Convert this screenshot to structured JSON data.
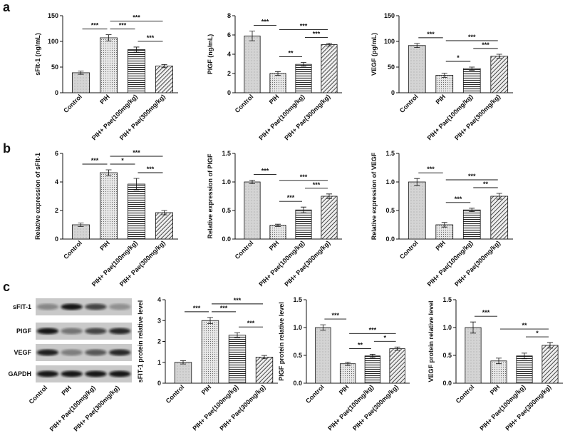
{
  "panel_labels": [
    "a",
    "b",
    "c"
  ],
  "blot": {
    "rows": [
      "sFIT-1",
      "PIGF",
      "VEGF",
      "GAPDH"
    ],
    "categories": [
      "Control",
      "PIH",
      "PIH+ Pae(100mg/kg)",
      "PIH+ Pae(300mg/kg)"
    ]
  },
  "chart_data": [
    {
      "type": "bar",
      "y_label": "sFlt-1 (ng/mL)",
      "categories": [
        "Control",
        "PIH",
        "PIH+ Pae(100mg/kg)",
        "PIH+ Pae(300mg/kg)"
      ],
      "values": [
        39,
        107,
        84,
        52
      ],
      "errors": [
        3,
        6,
        5,
        3
      ],
      "ylim": [
        0,
        150
      ],
      "yticks": [
        0,
        50,
        100,
        150
      ],
      "annotations": [
        {
          "text": "***",
          "between": [
            "Control",
            "PIH"
          ]
        },
        {
          "text": "***",
          "between": [
            "PIH",
            "PIH+ Pae(100mg/kg)"
          ]
        },
        {
          "text": "***",
          "between": [
            "PIH+ Pae(100mg/kg)",
            "PIH+ Pae(300mg/kg)"
          ]
        },
        {
          "text": "***",
          "between": [
            "PIH",
            "PIH+ Pae(300mg/kg)"
          ]
        }
      ]
    },
    {
      "type": "bar",
      "y_label": "PIGF (ng/mL)",
      "categories": [
        "Control",
        "PIH",
        "PIH+ Pae(100mg/kg)",
        "PIH+ Pae(300mg/kg)"
      ],
      "values": [
        5.9,
        2.0,
        2.95,
        5.0
      ],
      "errors": [
        0.5,
        0.2,
        0.2,
        0.15
      ],
      "ylim": [
        0,
        8
      ],
      "yticks": [
        0,
        2,
        4,
        6,
        8
      ],
      "annotations": [
        {
          "text": "***",
          "between": [
            "Control",
            "PIH"
          ]
        },
        {
          "text": "**",
          "between": [
            "PIH",
            "PIH+ Pae(100mg/kg)"
          ]
        },
        {
          "text": "***",
          "between": [
            "PIH+ Pae(100mg/kg)",
            "PIH+ Pae(300mg/kg)"
          ]
        },
        {
          "text": "***",
          "between": [
            "PIH",
            "PIH+ Pae(300mg/kg)"
          ]
        }
      ]
    },
    {
      "type": "bar",
      "y_label": "VEGF (pg/mL)",
      "categories": [
        "Control",
        "PIH",
        "PIH+ Pae(100mg/kg)",
        "PIH+ Pae(300mg/kg)"
      ],
      "values": [
        92,
        34,
        47,
        71
      ],
      "errors": [
        4,
        4,
        3,
        4
      ],
      "ylim": [
        0,
        150
      ],
      "yticks": [
        0,
        50,
        100,
        150
      ],
      "annotations": [
        {
          "text": "***",
          "between": [
            "Control",
            "PIH"
          ]
        },
        {
          "text": "*",
          "between": [
            "PIH",
            "PIH+ Pae(100mg/kg)"
          ]
        },
        {
          "text": "***",
          "between": [
            "PIH+ Pae(100mg/kg)",
            "PIH+ Pae(300mg/kg)"
          ]
        },
        {
          "text": "***",
          "between": [
            "PIH",
            "PIH+ Pae(300mg/kg)"
          ]
        }
      ]
    },
    {
      "type": "bar",
      "y_label": "Relative expression of sFlt-1",
      "categories": [
        "Control",
        "PIH",
        "PIH+ Pae(100mg/kg)",
        "PIH+ Pae(300mg/kg)"
      ],
      "values": [
        1.0,
        4.65,
        3.85,
        1.85
      ],
      "errors": [
        0.12,
        0.2,
        0.4,
        0.15
      ],
      "ylim": [
        0,
        6
      ],
      "yticks": [
        0,
        2,
        4,
        6
      ],
      "annotations": [
        {
          "text": "***",
          "between": [
            "Control",
            "PIH"
          ]
        },
        {
          "text": "*",
          "between": [
            "PIH",
            "PIH+ Pae(100mg/kg)"
          ]
        },
        {
          "text": "***",
          "between": [
            "PIH+ Pae(100mg/kg)",
            "PIH+ Pae(300mg/kg)"
          ]
        },
        {
          "text": "***",
          "between": [
            "PIH",
            "PIH+ Pae(300mg/kg)"
          ]
        }
      ]
    },
    {
      "type": "bar",
      "y_label": "Relative expression of PIGF",
      "categories": [
        "Control",
        "PIH",
        "PIH+ Pae(100mg/kg)",
        "PIH+ Pae(300mg/kg)"
      ],
      "values": [
        1.0,
        0.24,
        0.51,
        0.75
      ],
      "errors": [
        0.03,
        0.02,
        0.05,
        0.04
      ],
      "ylim": [
        0,
        1.5
      ],
      "yticks": [
        {
          "value": 0,
          "label": "0.0"
        },
        0.5,
        {
          "value": 1,
          "label": "1.0"
        },
        1.5
      ],
      "annotations": [
        {
          "text": "***",
          "between": [
            "Control",
            "PIH"
          ]
        },
        {
          "text": "***",
          "between": [
            "PIH",
            "PIH+ Pae(100mg/kg)"
          ]
        },
        {
          "text": "***",
          "between": [
            "PIH+ Pae(100mg/kg)",
            "PIH+ Pae(300mg/kg)"
          ]
        },
        {
          "text": "***",
          "between": [
            "PIH",
            "PIH+ Pae(300mg/kg)"
          ]
        }
      ]
    },
    {
      "type": "bar",
      "y_label": "Relative expression of VEGF",
      "categories": [
        "Control",
        "PIH",
        "PIH+ Pae(100mg/kg)",
        "PIH+ Pae(300mg/kg)"
      ],
      "values": [
        1.0,
        0.25,
        0.51,
        0.75
      ],
      "errors": [
        0.06,
        0.04,
        0.03,
        0.05
      ],
      "ylim": [
        0,
        1.5
      ],
      "yticks": [
        {
          "value": 0,
          "label": "0.0"
        },
        0.5,
        {
          "value": 1,
          "label": "1.0"
        },
        1.5
      ],
      "annotations": [
        {
          "text": "***",
          "between": [
            "Control",
            "PIH"
          ]
        },
        {
          "text": "***",
          "between": [
            "PIH",
            "PIH+ Pae(100mg/kg)"
          ]
        },
        {
          "text": "**",
          "between": [
            "PIH+ Pae(100mg/kg)",
            "PIH+ Pae(300mg/kg)"
          ]
        },
        {
          "text": "***",
          "between": [
            "PIH",
            "PIH+ Pae(300mg/kg)"
          ]
        }
      ]
    },
    {
      "type": "bar",
      "y_label": "sFIT-1 protein relative level",
      "categories": [
        "Control",
        "PIH",
        "PIH+ Pae(100mg/kg)",
        "PIH+ Pae(300mg/kg)"
      ],
      "values": [
        1.0,
        3.0,
        2.3,
        1.25
      ],
      "errors": [
        0.08,
        0.15,
        0.12,
        0.08
      ],
      "ylim": [
        0,
        4
      ],
      "yticks": [
        0,
        1,
        2,
        3,
        4
      ],
      "annotations": [
        {
          "text": "***",
          "between": [
            "Control",
            "PIH"
          ]
        },
        {
          "text": "***",
          "between": [
            "PIH",
            "PIH+ Pae(100mg/kg)"
          ]
        },
        {
          "text": "***",
          "between": [
            "PIH+ Pae(100mg/kg)",
            "PIH+ Pae(300mg/kg)"
          ]
        },
        {
          "text": "***",
          "between": [
            "PIH",
            "PIH+ Pae(300mg/kg)"
          ]
        }
      ]
    },
    {
      "type": "bar",
      "y_label": "PIGF protein relative level",
      "categories": [
        "Control",
        "PIH",
        "PIH+ Pae(100mg/kg)",
        "PIH+ Pae(300mg/kg)"
      ],
      "values": [
        1.0,
        0.35,
        0.49,
        0.62
      ],
      "errors": [
        0.05,
        0.03,
        0.03,
        0.03
      ],
      "ylim": [
        0,
        1.5
      ],
      "yticks": [
        {
          "value": 0,
          "label": "0.0"
        },
        0.5,
        {
          "value": 1,
          "label": "1.0"
        },
        1.5
      ],
      "annotations": [
        {
          "text": "***",
          "between": [
            "Control",
            "PIH"
          ]
        },
        {
          "text": "**",
          "between": [
            "PIH",
            "PIH+ Pae(100mg/kg)"
          ]
        },
        {
          "text": "*",
          "between": [
            "PIH+ Pae(100mg/kg)",
            "PIH+ Pae(300mg/kg)"
          ]
        },
        {
          "text": "***",
          "between": [
            "PIH",
            "PIH+ Pae(300mg/kg)"
          ]
        }
      ]
    },
    {
      "type": "bar",
      "y_label": "VEGF protein relative level",
      "categories": [
        "Control",
        "PIH",
        "PIH+ Pae(100mg/kg)",
        "PIH+ Pae(300mg/kg)"
      ],
      "values": [
        1.0,
        0.4,
        0.49,
        0.68
      ],
      "errors": [
        0.1,
        0.05,
        0.05,
        0.05
      ],
      "ylim": [
        0,
        1.5
      ],
      "yticks": [
        {
          "value": 0,
          "label": "0.0"
        },
        0.5,
        {
          "value": 1,
          "label": "1.0"
        },
        1.5
      ],
      "annotations": [
        {
          "text": "***",
          "between": [
            "Control",
            "PIH"
          ]
        },
        {
          "text": "*",
          "between": [
            "PIH+ Pae(100mg/kg)",
            "PIH+ Pae(300mg/kg)"
          ]
        },
        {
          "text": "**",
          "between": [
            "PIH",
            "PIH+ Pae(300mg/kg)"
          ]
        }
      ]
    }
  ]
}
